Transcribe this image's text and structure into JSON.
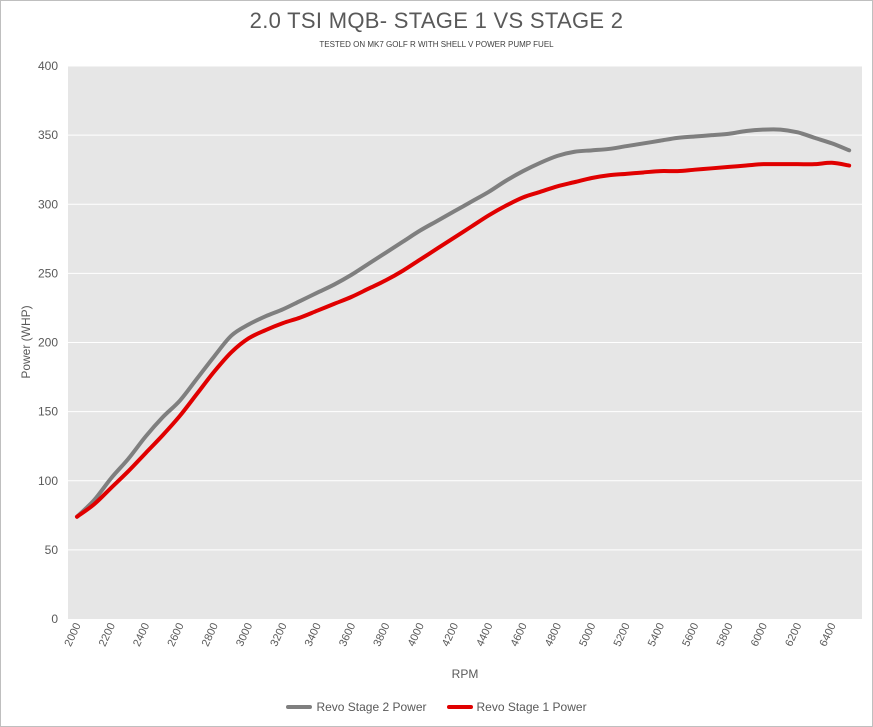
{
  "chart_data": {
    "type": "line",
    "title": "2.0 TSI MQB- STAGE 1 VS STAGE 2",
    "subtitle": "TESTED ON MK7 GOLF R WITH SHELL V POWER PUMP FUEL",
    "xlabel": "RPM",
    "ylabel": "Power (WHP)",
    "xlim": [
      2000,
      6500
    ],
    "ylim": [
      0,
      400
    ],
    "x_ticks": [
      2000,
      2200,
      2400,
      2600,
      2800,
      3000,
      3200,
      3400,
      3600,
      3800,
      4000,
      4200,
      4400,
      4600,
      4800,
      5000,
      5200,
      5400,
      5600,
      5800,
      6000,
      6200,
      6400
    ],
    "y_ticks": [
      0,
      50,
      100,
      150,
      200,
      250,
      300,
      350,
      400
    ],
    "grid": true,
    "legend_position": "bottom",
    "series": [
      {
        "name": "Revo Stage 2 Power",
        "color": "#7f7f7f",
        "x": [
          2000,
          2100,
          2200,
          2300,
          2400,
          2500,
          2600,
          2700,
          2800,
          2900,
          3000,
          3100,
          3200,
          3300,
          3400,
          3500,
          3600,
          3700,
          3800,
          3900,
          4000,
          4100,
          4200,
          4300,
          4400,
          4500,
          4600,
          4700,
          4800,
          4900,
          5000,
          5100,
          5200,
          5300,
          5400,
          5500,
          5600,
          5700,
          5800,
          5900,
          6000,
          6100,
          6200,
          6300,
          6400,
          6500
        ],
        "values": [
          74,
          86,
          102,
          116,
          132,
          146,
          158,
          174,
          190,
          205,
          213,
          219,
          224,
          230,
          236,
          242,
          249,
          257,
          265,
          273,
          281,
          288,
          295,
          302,
          309,
          317,
          324,
          330,
          335,
          338,
          339,
          340,
          342,
          344,
          346,
          348,
          349,
          350,
          351,
          353,
          354,
          354,
          352,
          348,
          344,
          339
        ]
      },
      {
        "name": "Revo Stage 1 Power",
        "color": "#e00000",
        "x": [
          2000,
          2100,
          2200,
          2300,
          2400,
          2500,
          2600,
          2700,
          2800,
          2900,
          3000,
          3100,
          3200,
          3300,
          3400,
          3500,
          3600,
          3700,
          3800,
          3900,
          4000,
          4100,
          4200,
          4300,
          4400,
          4500,
          4600,
          4700,
          4800,
          4900,
          5000,
          5100,
          5200,
          5300,
          5400,
          5500,
          5600,
          5700,
          5800,
          5900,
          6000,
          6100,
          6200,
          6300,
          6400,
          6500
        ],
        "values": [
          74,
          83,
          95,
          107,
          120,
          133,
          147,
          163,
          179,
          193,
          203,
          209,
          214,
          218,
          223,
          228,
          233,
          239,
          245,
          252,
          260,
          268,
          276,
          284,
          292,
          299,
          305,
          309,
          313,
          316,
          319,
          321,
          322,
          323,
          324,
          324,
          325,
          326,
          327,
          328,
          329,
          329,
          329,
          329,
          330,
          328
        ]
      }
    ]
  }
}
